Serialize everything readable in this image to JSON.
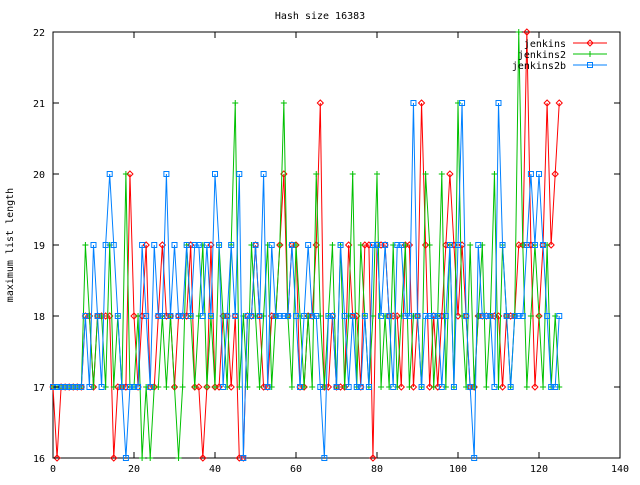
{
  "chart_data": {
    "type": "line",
    "title": "Hash size 16383",
    "xlabel": "",
    "ylabel": "maximum list length",
    "xlim": [
      0,
      140
    ],
    "ylim": [
      16,
      22
    ],
    "x_ticks": [
      "0",
      "20",
      "40",
      "60",
      "80",
      "100",
      "120",
      "140"
    ],
    "y_ticks": [
      "16",
      "17",
      "18",
      "19",
      "20",
      "21",
      "22"
    ],
    "legend_position": "top-right",
    "grid": false,
    "series": [
      {
        "name": "jenkins",
        "color": "#ff0000",
        "marker": "diamond",
        "x": [
          0,
          1,
          2,
          3,
          4,
          5,
          6,
          7,
          8,
          9,
          10,
          11,
          12,
          13,
          14,
          15,
          16,
          17,
          18,
          19,
          20,
          21,
          22,
          23,
          24,
          25,
          26,
          27,
          28,
          29,
          30,
          31,
          32,
          33,
          34,
          35,
          36,
          37,
          38,
          39,
          40,
          41,
          42,
          43,
          44,
          45,
          46,
          47,
          48,
          49,
          50,
          51,
          52,
          53,
          54,
          55,
          56,
          57,
          58,
          59,
          60,
          61,
          62,
          63,
          64,
          65,
          66,
          67,
          68,
          69,
          70,
          71,
          72,
          73,
          74,
          75,
          76,
          77,
          78,
          79,
          80,
          81,
          82,
          83,
          84,
          85,
          86,
          87,
          88,
          89,
          90,
          91,
          92,
          93,
          94,
          95,
          96,
          97,
          98,
          99,
          100,
          101,
          102,
          103,
          104,
          105,
          106,
          107,
          108,
          109,
          110,
          111,
          112,
          113,
          114,
          115,
          116,
          117,
          118,
          119,
          120,
          121,
          122,
          123,
          124,
          125
        ],
        "values": [
          17,
          16,
          17,
          17,
          17,
          17,
          17,
          17,
          18,
          18,
          17,
          18,
          18,
          18,
          18,
          16,
          17,
          17,
          17,
          20,
          18,
          17,
          18,
          19,
          17,
          17,
          18,
          19,
          18,
          18,
          17,
          18,
          18,
          18,
          19,
          17,
          17,
          16,
          17,
          19,
          17,
          17,
          18,
          18,
          17,
          18,
          16,
          16,
          18,
          18,
          19,
          18,
          17,
          17,
          18,
          18,
          19,
          20,
          18,
          19,
          19,
          17,
          17,
          18,
          18,
          19,
          21,
          17,
          17,
          18,
          17,
          17,
          17,
          19,
          18,
          18,
          17,
          19,
          19,
          16,
          19,
          19,
          19,
          18,
          18,
          18,
          17,
          19,
          19,
          17,
          18,
          21,
          19,
          17,
          18,
          17,
          18,
          19,
          20,
          19,
          18,
          19,
          18,
          17,
          17,
          18,
          18,
          18,
          18,
          18,
          18,
          17,
          18,
          18,
          18,
          19,
          19,
          22,
          19,
          17,
          18,
          19,
          21,
          19,
          20,
          21
        ]
      },
      {
        "name": "jenkins2",
        "color": "#00c000",
        "marker": "plus",
        "x": [
          0,
          1,
          2,
          3,
          4,
          5,
          6,
          7,
          8,
          9,
          10,
          11,
          12,
          13,
          14,
          15,
          16,
          17,
          18,
          19,
          20,
          21,
          22,
          23,
          24,
          25,
          26,
          27,
          28,
          29,
          30,
          31,
          32,
          33,
          34,
          35,
          36,
          37,
          38,
          39,
          40,
          41,
          42,
          43,
          44,
          45,
          46,
          47,
          48,
          49,
          50,
          51,
          52,
          53,
          54,
          55,
          56,
          57,
          58,
          59,
          60,
          61,
          62,
          63,
          64,
          65,
          66,
          67,
          68,
          69,
          70,
          71,
          72,
          73,
          74,
          75,
          76,
          77,
          78,
          79,
          80,
          81,
          82,
          83,
          84,
          85,
          86,
          87,
          88,
          89,
          90,
          91,
          92,
          93,
          94,
          95,
          96,
          97,
          98,
          99,
          100,
          101,
          102,
          103,
          104,
          105,
          106,
          107,
          108,
          109,
          110,
          111,
          112,
          113,
          114,
          115,
          116,
          117,
          118,
          119,
          120,
          121,
          122,
          123,
          124,
          125
        ],
        "values": [
          17,
          17,
          17,
          17,
          17,
          17,
          17,
          17,
          19,
          18,
          17,
          18,
          18,
          17,
          19,
          17,
          18,
          17,
          20,
          17,
          17,
          18,
          16,
          17,
          16,
          17,
          17,
          18,
          17,
          18,
          17,
          16,
          17,
          19,
          18,
          17,
          18,
          19,
          17,
          18,
          17,
          19,
          18,
          17,
          19,
          21,
          17,
          18,
          17,
          19,
          18,
          17,
          18,
          19,
          17,
          18,
          19,
          21,
          18,
          17,
          19,
          18,
          17,
          18,
          17,
          20,
          18,
          17,
          18,
          19,
          17,
          19,
          17,
          18,
          20,
          17,
          19,
          18,
          17,
          18,
          20,
          17,
          18,
          17,
          19,
          17,
          18,
          19,
          17,
          18,
          18,
          17,
          20,
          19,
          17,
          18,
          20,
          17,
          19,
          17,
          21,
          18,
          17,
          19,
          17,
          18,
          19,
          17,
          18,
          20,
          17,
          19,
          18,
          17,
          18,
          22,
          19,
          17,
          18,
          19,
          18,
          17,
          19,
          17,
          18,
          17
        ]
      },
      {
        "name": "jenkins2b",
        "color": "#0080ff",
        "marker": "square",
        "x": [
          0,
          1,
          2,
          3,
          4,
          5,
          6,
          7,
          8,
          9,
          10,
          11,
          12,
          13,
          14,
          15,
          16,
          17,
          18,
          19,
          20,
          21,
          22,
          23,
          24,
          25,
          26,
          27,
          28,
          29,
          30,
          31,
          32,
          33,
          34,
          35,
          36,
          37,
          38,
          39,
          40,
          41,
          42,
          43,
          44,
          45,
          46,
          47,
          48,
          49,
          50,
          51,
          52,
          53,
          54,
          55,
          56,
          57,
          58,
          59,
          60,
          61,
          62,
          63,
          64,
          65,
          66,
          67,
          68,
          69,
          70,
          71,
          72,
          73,
          74,
          75,
          76,
          77,
          78,
          79,
          80,
          81,
          82,
          83,
          84,
          85,
          86,
          87,
          88,
          89,
          90,
          91,
          92,
          93,
          94,
          95,
          96,
          97,
          98,
          99,
          100,
          101,
          102,
          103,
          104,
          105,
          106,
          107,
          108,
          109,
          110,
          111,
          112,
          113,
          114,
          115,
          116,
          117,
          118,
          119,
          120,
          121,
          122,
          123,
          124,
          125
        ],
        "values": [
          17,
          17,
          17,
          17,
          17,
          17,
          17,
          17,
          18,
          17,
          19,
          18,
          17,
          19,
          20,
          19,
          18,
          17,
          16,
          17,
          17,
          17,
          19,
          18,
          17,
          19,
          18,
          18,
          20,
          18,
          19,
          18,
          18,
          19,
          18,
          19,
          19,
          18,
          19,
          18,
          20,
          19,
          17,
          18,
          19,
          18,
          20,
          16,
          18,
          18,
          19,
          18,
          20,
          17,
          19,
          18,
          18,
          18,
          18,
          19,
          18,
          17,
          18,
          19,
          18,
          18,
          17,
          16,
          18,
          18,
          17,
          19,
          18,
          17,
          18,
          17,
          17,
          18,
          17,
          19,
          19,
          18,
          19,
          18,
          17,
          19,
          19,
          18,
          18,
          21,
          18,
          17,
          18,
          18,
          18,
          18,
          17,
          18,
          19,
          17,
          19,
          21,
          18,
          17,
          16,
          19,
          18,
          18,
          18,
          17,
          21,
          19,
          18,
          17,
          18,
          18,
          18,
          19,
          20,
          19,
          20,
          19,
          18,
          17,
          17,
          18
        ]
      }
    ]
  }
}
